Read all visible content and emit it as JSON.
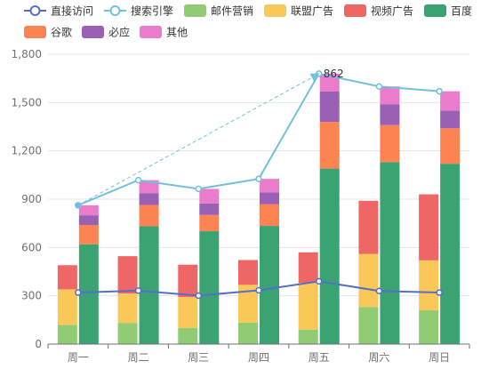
{
  "chart_data": {
    "type": "bar",
    "categories": [
      "周一",
      "周二",
      "周三",
      "周四",
      "周五",
      "周六",
      "周日"
    ],
    "ylim": [
      0,
      1800
    ],
    "yticks": [
      0,
      300,
      600,
      900,
      1200,
      1500,
      1800
    ],
    "ytick_labels": [
      "0",
      "300",
      "600",
      "900",
      "1,200",
      "1,500",
      "1,800"
    ],
    "grid": true,
    "legend_position": "top-left",
    "stack_groups": [
      {
        "stack": "left",
        "series": [
          {
            "name": "邮件营销",
            "color": "#91cc75",
            "values": [
              120,
              132,
              101,
              134,
              90,
              230,
              210
            ]
          },
          {
            "name": "联盟广告",
            "color": "#fac858",
            "values": [
              220,
              182,
              191,
              234,
              290,
              330,
              310
            ]
          },
          {
            "name": "视频广告",
            "color": "#ee6666",
            "values": [
              150,
              232,
              201,
              154,
              190,
              330,
              410
            ]
          }
        ]
      },
      {
        "stack": "right",
        "series": [
          {
            "name": "百度",
            "color": "#3ba272",
            "values": [
              620,
              732,
              701,
              734,
              1090,
              1130,
              1120
            ]
          },
          {
            "name": "谷歌",
            "color": "#fc8452",
            "values": [
              120,
              132,
              101,
              134,
              290,
              230,
              220
            ]
          },
          {
            "name": "必应",
            "color": "#9a60b4",
            "values": [
              60,
              72,
              71,
              74,
              190,
              130,
              110
            ]
          },
          {
            "name": "其他",
            "color": "#ea7ccc",
            "values": [
              62,
              82,
              91,
              84,
              109,
              110,
              120
            ]
          }
        ]
      }
    ],
    "lines": [
      {
        "name": "直接访问",
        "color": "#5470c6",
        "values": [
          320,
          332,
          301,
          334,
          390,
          330,
          320
        ]
      },
      {
        "name": "搜索引擎",
        "color": "#73c0de",
        "values": [
          862,
          1018,
          964,
          1026,
          1679,
          1600,
          1570
        ]
      }
    ],
    "annotations": [
      {
        "type": "label",
        "text": "862"
      },
      {
        "type": "dashed-arrow",
        "series": "搜索引擎",
        "from_category": "周一",
        "to_category": "周五"
      }
    ],
    "legend": [
      {
        "name": "直接访问",
        "kind": "line",
        "color": "#5470c6"
      },
      {
        "name": "搜索引擎",
        "kind": "line",
        "color": "#73c0de"
      },
      {
        "name": "邮件营销",
        "kind": "rect",
        "color": "#91cc75"
      },
      {
        "name": "联盟广告",
        "kind": "rect",
        "color": "#fac858"
      },
      {
        "name": "视频广告",
        "kind": "rect",
        "color": "#ee6666"
      },
      {
        "name": "百度",
        "kind": "rect",
        "color": "#3ba272"
      },
      {
        "name": "谷歌",
        "kind": "rect",
        "color": "#fc8452"
      },
      {
        "name": "必应",
        "kind": "rect",
        "color": "#9a60b4"
      },
      {
        "name": "其他",
        "kind": "rect",
        "color": "#ea7ccc"
      }
    ]
  }
}
